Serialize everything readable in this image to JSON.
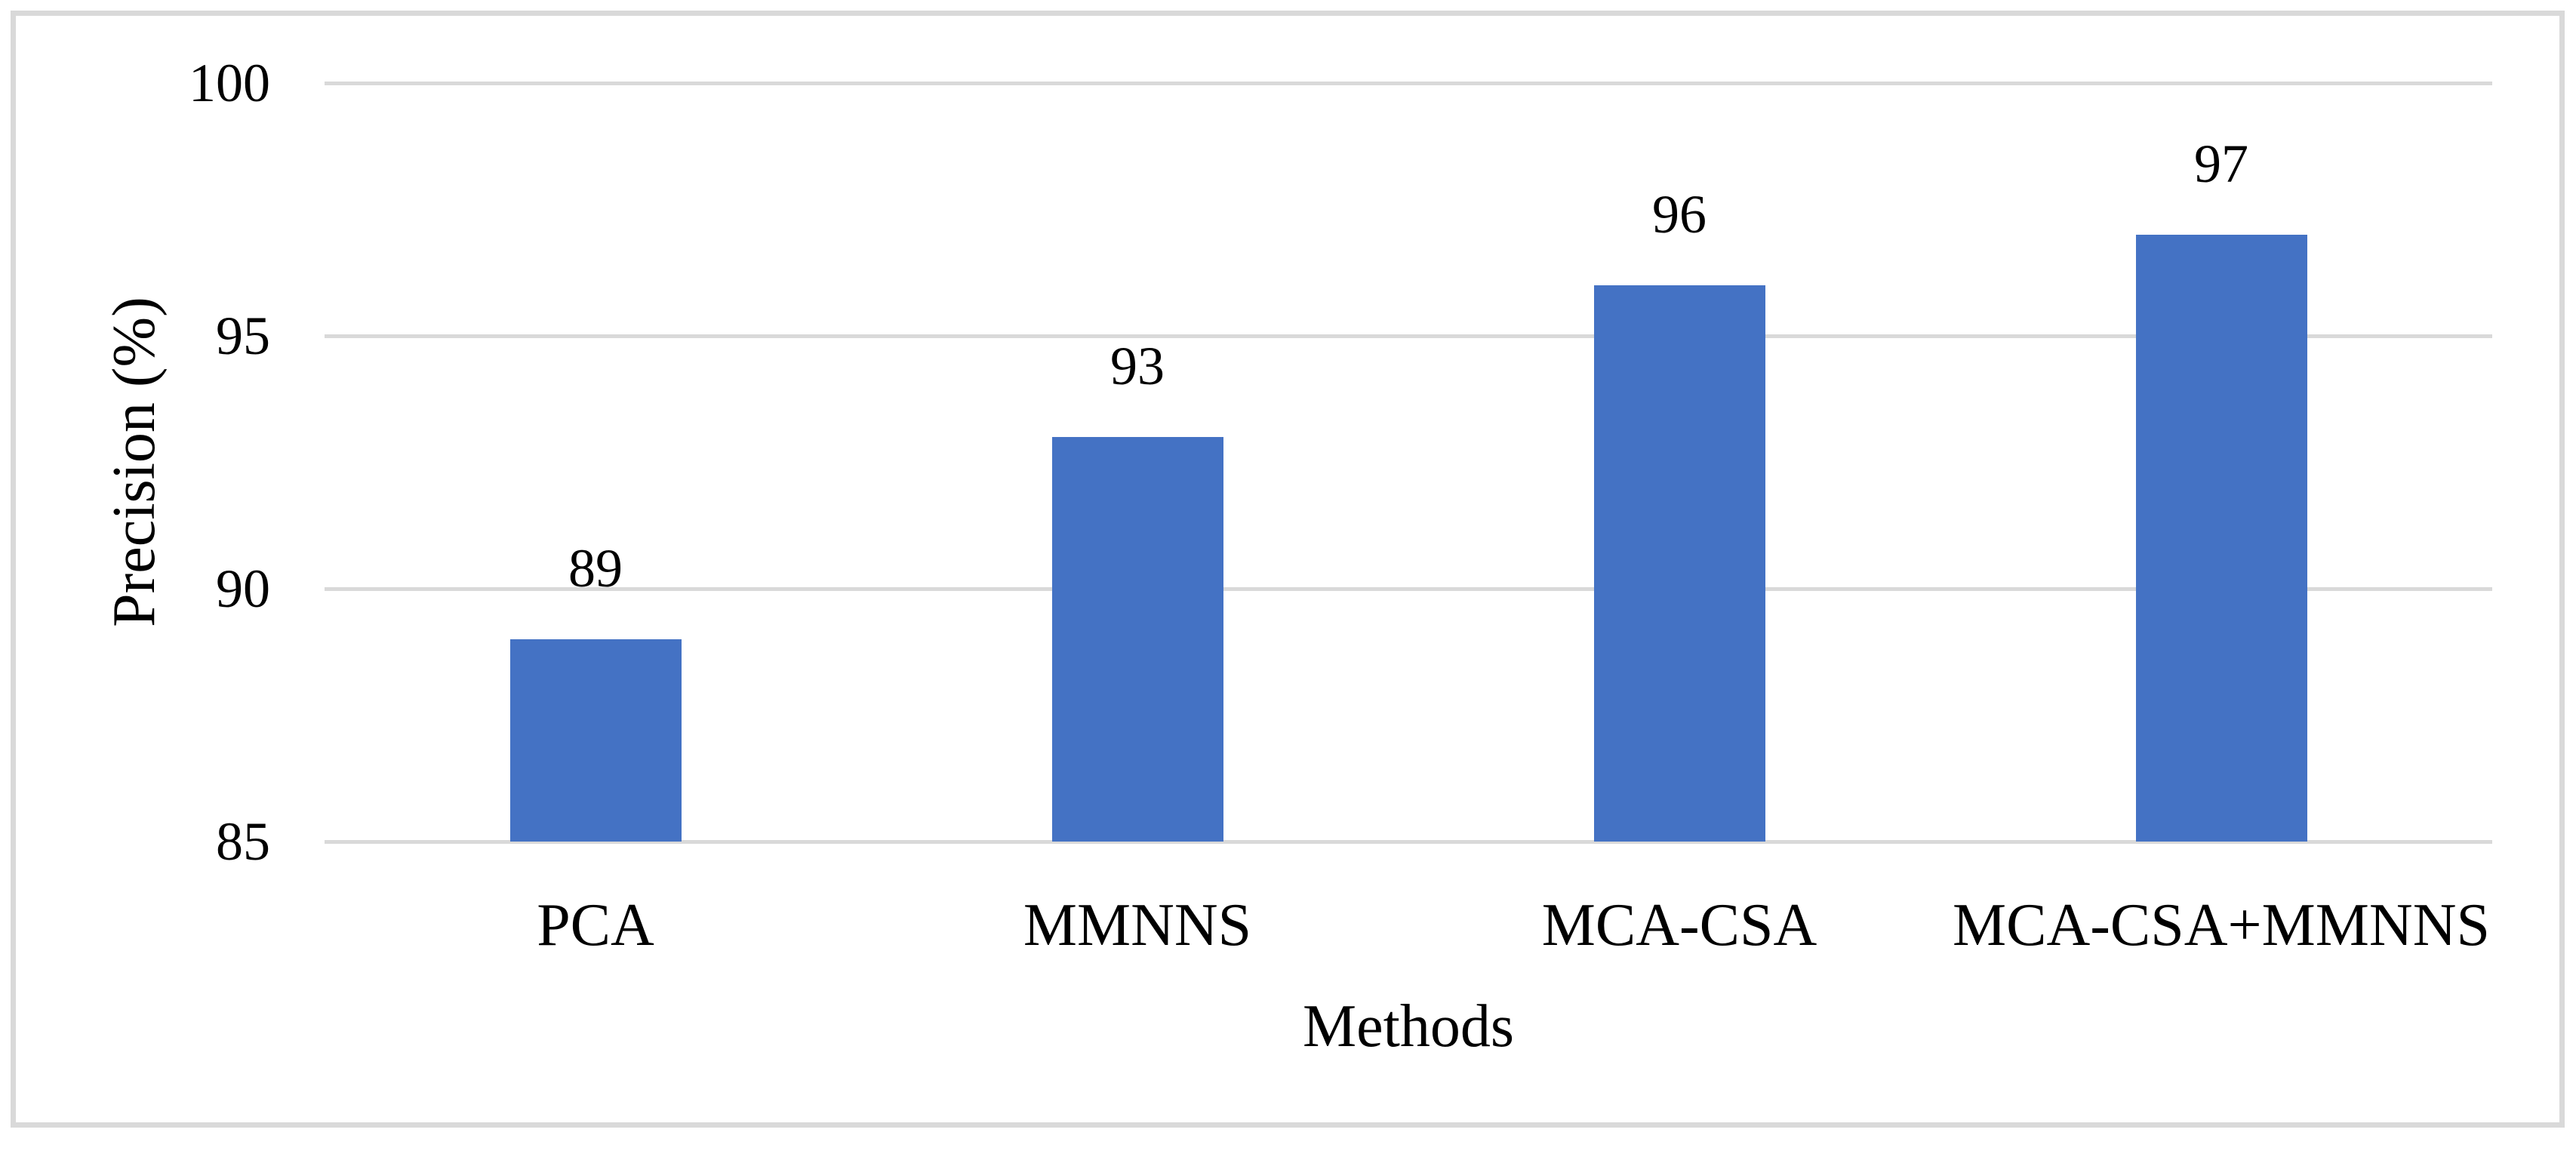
{
  "figure": {
    "background_color": "#ffffff",
    "border_color": "#d9d9d9"
  },
  "chart_data": {
    "type": "bar",
    "categories": [
      "PCA",
      "MMNNS",
      "MCA-CSA",
      "MCA-CSA+MMNNS"
    ],
    "values": [
      89,
      93,
      96,
      97
    ],
    "data_labels": [
      "89",
      "93",
      "96",
      "97"
    ],
    "title": "",
    "xlabel": "Methods",
    "ylabel": "Precision (%)",
    "ylim": [
      85,
      100
    ],
    "yticks": [
      85,
      90,
      95,
      100
    ],
    "ytick_labels": [
      "85",
      "90",
      "95",
      "100"
    ],
    "grid": "horizontal",
    "legend": "none",
    "bar_color": "#4472c4",
    "gridline_color": "#d9d9d9",
    "text_color": "#000000"
  }
}
